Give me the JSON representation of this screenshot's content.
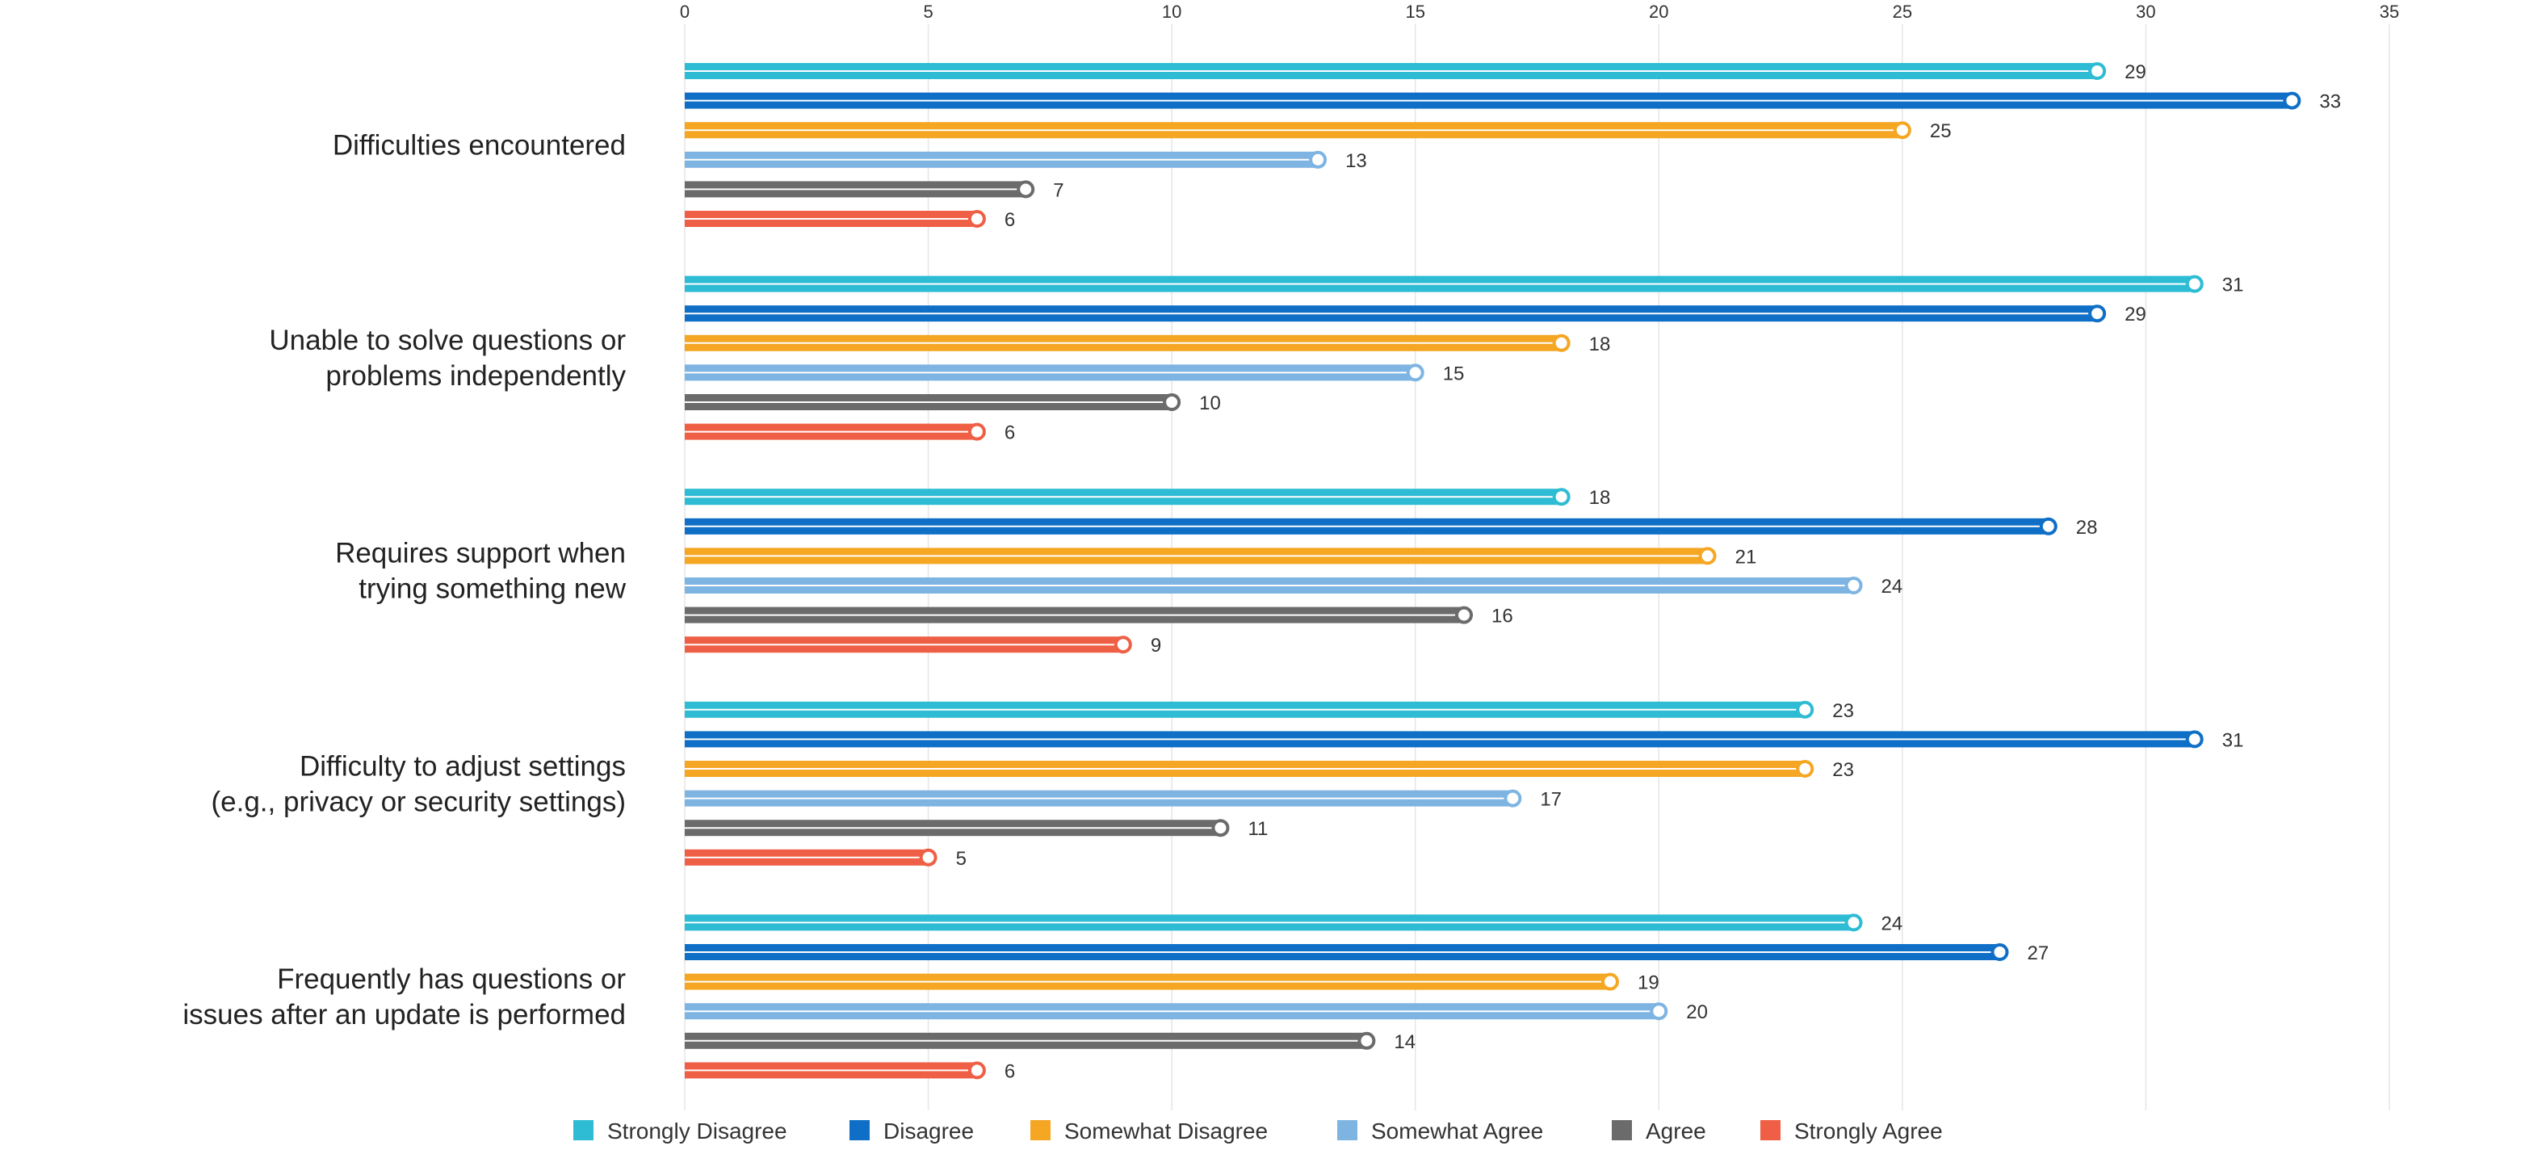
{
  "chart_data": {
    "type": "bar",
    "orientation": "horizontal",
    "categories": [
      [
        "Difficulties encountered"
      ],
      [
        "Unable to solve questions or",
        "problems independently"
      ],
      [
        "Requires support when",
        "trying something new"
      ],
      [
        "Difficulty to adjust settings",
        "(e.g., privacy or security settings)"
      ],
      [
        "Frequently has questions or",
        "issues after an update is performed"
      ]
    ],
    "series": [
      {
        "name": "Strongly Disagree",
        "color": "#2EBCD4",
        "values": [
          29,
          31,
          18,
          23,
          24
        ]
      },
      {
        "name": "Disagree",
        "color": "#0F6FC6",
        "values": [
          33,
          29,
          28,
          31,
          27
        ]
      },
      {
        "name": "Somewhat Disagree",
        "color": "#F5A623",
        "values": [
          25,
          18,
          21,
          23,
          19
        ]
      },
      {
        "name": "Somewhat Agree",
        "color": "#7EB4E2",
        "values": [
          13,
          15,
          24,
          17,
          20
        ]
      },
      {
        "name": "Agree",
        "color": "#6B6B6B",
        "values": [
          7,
          10,
          16,
          11,
          14
        ]
      },
      {
        "name": "Strongly Agree",
        "color": "#EF5F45",
        "values": [
          6,
          6,
          9,
          5,
          6
        ]
      }
    ],
    "xlim": [
      0,
      35
    ],
    "xticks": [
      0,
      5,
      10,
      15,
      20,
      25,
      30,
      35
    ],
    "axis_position": "top",
    "grid": true,
    "data_labels": true,
    "legend": "bottom"
  }
}
